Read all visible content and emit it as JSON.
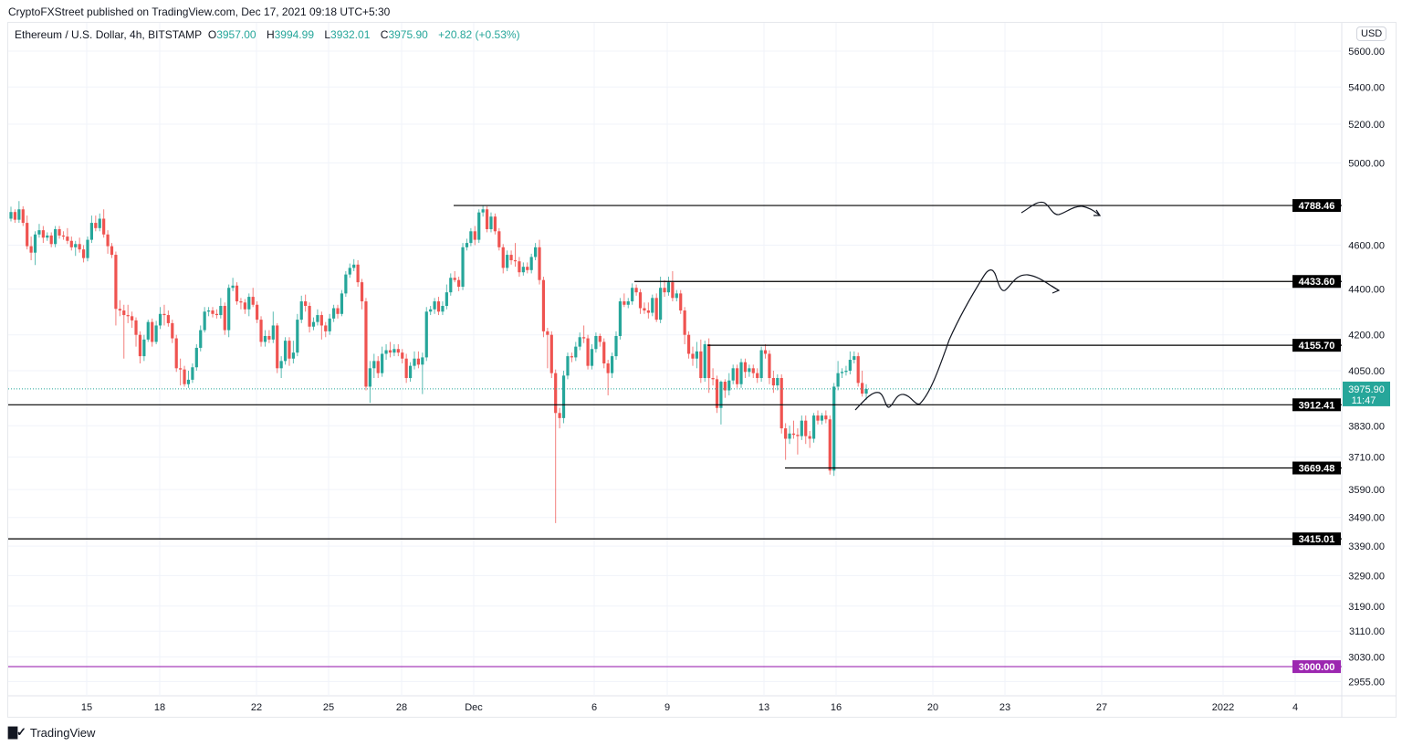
{
  "publisher_line": "CryptoFXStreet published on TradingView.com, Dec 17, 2021 09:18 UTC+5:30",
  "legend": {
    "symbol": "Ethereum / U.S. Dollar, 4h, BITSTAMP",
    "o_label": "O",
    "o": "3957.00",
    "h_label": "H",
    "h": "3994.99",
    "l_label": "L",
    "l": "3932.01",
    "c_label": "C",
    "c": "3975.90",
    "change": "+20.82 (+0.53%)"
  },
  "currency_button": "USD",
  "footer": {
    "logo_text": "TradingView",
    "logo_icon": "tradingview-logo-icon"
  },
  "colors": {
    "up": "#26a69a",
    "down": "#ef5350",
    "level": "#000000",
    "level_3000": "#9c27b0",
    "last_price": "#26a69a"
  },
  "chart_data": {
    "type": "candlestick",
    "timeframe": "4h",
    "y_scale": "log",
    "ylim": [
      2930,
      5700
    ],
    "grid": true,
    "y_ticks": [
      "5600.00",
      "5400.00",
      "5200.00",
      "5000.00",
      "4600.00",
      "4400.00",
      "4200.00",
      "4050.00",
      "3830.00",
      "3710.00",
      "3590.00",
      "3490.00",
      "3390.00",
      "3290.00",
      "3190.00",
      "3110.00",
      "3030.00",
      "2955.00"
    ],
    "x_ticks": [
      "15",
      "18",
      "22",
      "25",
      "28",
      "Dec",
      "6",
      "9",
      "13",
      "16",
      "20",
      "23",
      "27",
      "2022",
      "4"
    ],
    "last_price": {
      "value": "3975.90",
      "countdown": "11:47"
    },
    "levels": [
      {
        "value": "4788.46"
      },
      {
        "value": "4433.60"
      },
      {
        "value": "4155.70"
      },
      {
        "value": "3912.41"
      },
      {
        "value": "3669.48"
      },
      {
        "value": "3415.01"
      },
      {
        "value": "3000.00",
        "color": "#9c27b0"
      }
    ],
    "annotations": [
      "projected-path-up-to-4433",
      "projected-path-at-4788"
    ],
    "candles_ohlc": [
      [
        4725,
        4783,
        4712,
        4757
      ],
      [
        4757,
        4770,
        4705,
        4720
      ],
      [
        4720,
        4810,
        4705,
        4770
      ],
      [
        4770,
        4785,
        4690,
        4705
      ],
      [
        4705,
        4740,
        4580,
        4595
      ],
      [
        4595,
        4640,
        4530,
        4565
      ],
      [
        4565,
        4665,
        4508,
        4650
      ],
      [
        4650,
        4700,
        4635,
        4670
      ],
      [
        4670,
        4690,
        4610,
        4635
      ],
      [
        4635,
        4660,
        4620,
        4645
      ],
      [
        4645,
        4660,
        4590,
        4605
      ],
      [
        4605,
        4690,
        4590,
        4675
      ],
      [
        4675,
        4690,
        4630,
        4645
      ],
      [
        4645,
        4665,
        4625,
        4640
      ],
      [
        4640,
        4680,
        4605,
        4620
      ],
      [
        4620,
        4640,
        4575,
        4590
      ],
      [
        4590,
        4620,
        4550,
        4605
      ],
      [
        4605,
        4635,
        4565,
        4580
      ],
      [
        4580,
        4600,
        4520,
        4540
      ],
      [
        4540,
        4640,
        4525,
        4625
      ],
      [
        4625,
        4740,
        4610,
        4705
      ],
      [
        4705,
        4740,
        4665,
        4680
      ],
      [
        4680,
        4750,
        4665,
        4725
      ],
      [
        4725,
        4770,
        4635,
        4650
      ],
      [
        4650,
        4670,
        4560,
        4595
      ],
      [
        4595,
        4610,
        4540,
        4555
      ],
      [
        4555,
        4570,
        4240,
        4312
      ],
      [
        4312,
        4350,
        4280,
        4305
      ],
      [
        4305,
        4330,
        4100,
        4285
      ],
      [
        4285,
        4330,
        4250,
        4280
      ],
      [
        4280,
        4300,
        4230,
        4262
      ],
      [
        4262,
        4275,
        4150,
        4200
      ],
      [
        4200,
        4215,
        4080,
        4110
      ],
      [
        4110,
        4200,
        4090,
        4180
      ],
      [
        4180,
        4265,
        4170,
        4255
      ],
      [
        4255,
        4270,
        4150,
        4170
      ],
      [
        4170,
        4260,
        4160,
        4240
      ],
      [
        4240,
        4320,
        4225,
        4290
      ],
      [
        4290,
        4330,
        4240,
        4285
      ],
      [
        4285,
        4305,
        4235,
        4250
      ],
      [
        4250,
        4265,
        4165,
        4185
      ],
      [
        4185,
        4200,
        4045,
        4060
      ],
      [
        4060,
        4100,
        3990,
        4055
      ],
      [
        4055,
        4070,
        3985,
        3995
      ],
      [
        3995,
        4050,
        3980,
        4013
      ],
      [
        4013,
        4080,
        4000,
        4064
      ],
      [
        4064,
        4160,
        4050,
        4145
      ],
      [
        4145,
        4240,
        4130,
        4220
      ],
      [
        4220,
        4320,
        4210,
        4300
      ],
      [
        4300,
        4320,
        4280,
        4305
      ],
      [
        4305,
        4320,
        4275,
        4290
      ],
      [
        4290,
        4310,
        4270,
        4285
      ],
      [
        4285,
        4360,
        4270,
        4325
      ],
      [
        4325,
        4340,
        4200,
        4220
      ],
      [
        4220,
        4420,
        4190,
        4405
      ],
      [
        4405,
        4450,
        4390,
        4415
      ],
      [
        4415,
        4430,
        4330,
        4345
      ],
      [
        4345,
        4360,
        4310,
        4340
      ],
      [
        4340,
        4355,
        4290,
        4310
      ],
      [
        4310,
        4380,
        4280,
        4365
      ],
      [
        4365,
        4405,
        4320,
        4330
      ],
      [
        4330,
        4345,
        4250,
        4265
      ],
      [
        4265,
        4280,
        4150,
        4170
      ],
      [
        4170,
        4220,
        4150,
        4195
      ],
      [
        4195,
        4220,
        4165,
        4180
      ],
      [
        4180,
        4300,
        4165,
        4240
      ],
      [
        4240,
        4250,
        4040,
        4060
      ],
      [
        4060,
        4110,
        4020,
        4090
      ],
      [
        4090,
        4190,
        4075,
        4175
      ],
      [
        4175,
        4190,
        4070,
        4100
      ],
      [
        4100,
        4175,
        4080,
        4125
      ],
      [
        4125,
        4290,
        4110,
        4265
      ],
      [
        4265,
        4370,
        4250,
        4345
      ],
      [
        4345,
        4375,
        4300,
        4325
      ],
      [
        4325,
        4340,
        4210,
        4235
      ],
      [
        4235,
        4275,
        4220,
        4255
      ],
      [
        4255,
        4310,
        4240,
        4285
      ],
      [
        4285,
        4300,
        4180,
        4240
      ],
      [
        4240,
        4255,
        4190,
        4215
      ],
      [
        4215,
        4290,
        4200,
        4270
      ],
      [
        4270,
        4330,
        4255,
        4315
      ],
      [
        4315,
        4330,
        4270,
        4290
      ],
      [
        4290,
        4395,
        4280,
        4380
      ],
      [
        4380,
        4480,
        4365,
        4465
      ],
      [
        4465,
        4515,
        4450,
        4495
      ],
      [
        4495,
        4535,
        4480,
        4510
      ],
      [
        4510,
        4530,
        4410,
        4430
      ],
      [
        4430,
        4445,
        4310,
        4345
      ],
      [
        4345,
        4360,
        3970,
        3985
      ],
      [
        3985,
        4090,
        3920,
        4060
      ],
      [
        4060,
        4120,
        4020,
        4090
      ],
      [
        4090,
        4110,
        4020,
        4040
      ],
      [
        4040,
        4150,
        4025,
        4120
      ],
      [
        4120,
        4160,
        4095,
        4135
      ],
      [
        4135,
        4170,
        4105,
        4125
      ],
      [
        4125,
        4160,
        4110,
        4140
      ],
      [
        4140,
        4160,
        4110,
        4125
      ],
      [
        4125,
        4140,
        4080,
        4100
      ],
      [
        4100,
        4120,
        4000,
        4020
      ],
      [
        4020,
        4085,
        4005,
        4070
      ],
      [
        4070,
        4130,
        4055,
        4100
      ],
      [
        4100,
        4130,
        4060,
        4075
      ],
      [
        4075,
        4125,
        3955,
        4105
      ],
      [
        4105,
        4320,
        4090,
        4300
      ],
      [
        4300,
        4325,
        4285,
        4310
      ],
      [
        4310,
        4360,
        4290,
        4345
      ],
      [
        4345,
        4365,
        4285,
        4300
      ],
      [
        4300,
        4345,
        4285,
        4325
      ],
      [
        4325,
        4420,
        4310,
        4385
      ],
      [
        4385,
        4470,
        4370,
        4450
      ],
      [
        4450,
        4480,
        4430,
        4440
      ],
      [
        4440,
        4455,
        4390,
        4410
      ],
      [
        4410,
        4610,
        4395,
        4590
      ],
      [
        4590,
        4630,
        4575,
        4610
      ],
      [
        4610,
        4680,
        4595,
        4665
      ],
      [
        4665,
        4690,
        4600,
        4625
      ],
      [
        4625,
        4770,
        4610,
        4755
      ],
      [
        4755,
        4790,
        4735,
        4770
      ],
      [
        4770,
        4785,
        4660,
        4675
      ],
      [
        4675,
        4755,
        4660,
        4735
      ],
      [
        4735,
        4750,
        4650,
        4665
      ],
      [
        4665,
        4680,
        4575,
        4590
      ],
      [
        4590,
        4605,
        4470,
        4495
      ],
      [
        4495,
        4575,
        4480,
        4555
      ],
      [
        4555,
        4575,
        4510,
        4530
      ],
      [
        4530,
        4610,
        4500,
        4525
      ],
      [
        4525,
        4545,
        4455,
        4475
      ],
      [
        4475,
        4520,
        4460,
        4500
      ],
      [
        4500,
        4520,
        4470,
        4485
      ],
      [
        4485,
        4560,
        4470,
        4545
      ],
      [
        4545,
        4610,
        4530,
        4590
      ],
      [
        4590,
        4625,
        4420,
        4440
      ],
      [
        4440,
        4455,
        4190,
        4215
      ],
      [
        4215,
        4230,
        4060,
        4200
      ],
      [
        4200,
        4215,
        4020,
        4040
      ],
      [
        4040,
        4055,
        3470,
        3880
      ],
      [
        3880,
        3900,
        3820,
        3860
      ],
      [
        3860,
        4050,
        3840,
        4030
      ],
      [
        4030,
        4125,
        4015,
        4110
      ],
      [
        4110,
        4125,
        4085,
        4105
      ],
      [
        4105,
        4170,
        4090,
        4150
      ],
      [
        4150,
        4210,
        4135,
        4190
      ],
      [
        4190,
        4240,
        4165,
        4185
      ],
      [
        4185,
        4200,
        4055,
        4070
      ],
      [
        4070,
        4160,
        4055,
        4140
      ],
      [
        4140,
        4210,
        4125,
        4195
      ],
      [
        4195,
        4205,
        4150,
        4170
      ],
      [
        4170,
        4185,
        4060,
        4080
      ],
      [
        4080,
        4095,
        3950,
        4040
      ],
      [
        4040,
        4125,
        4020,
        4110
      ],
      [
        4110,
        4215,
        4095,
        4195
      ],
      [
        4195,
        4360,
        4180,
        4345
      ],
      [
        4345,
        4380,
        4320,
        4330
      ],
      [
        4330,
        4360,
        4315,
        4345
      ],
      [
        4345,
        4425,
        4330,
        4405
      ],
      [
        4405,
        4420,
        4370,
        4385
      ],
      [
        4385,
        4400,
        4290,
        4315
      ],
      [
        4315,
        4340,
        4290,
        4305
      ],
      [
        4305,
        4340,
        4270,
        4295
      ],
      [
        4295,
        4375,
        4280,
        4360
      ],
      [
        4360,
        4380,
        4255,
        4265
      ],
      [
        4265,
        4455,
        4250,
        4405
      ],
      [
        4405,
        4440,
        4365,
        4385
      ],
      [
        4385,
        4455,
        4370,
        4430
      ],
      [
        4430,
        4480,
        4345,
        4360
      ],
      [
        4360,
        4395,
        4345,
        4380
      ],
      [
        4380,
        4395,
        4290,
        4305
      ],
      [
        4305,
        4320,
        4160,
        4200
      ],
      [
        4200,
        4215,
        4100,
        4120
      ],
      [
        4120,
        4150,
        4070,
        4100
      ],
      [
        4100,
        4170,
        4060,
        4130
      ],
      [
        4130,
        4180,
        4000,
        4020
      ],
      [
        4020,
        4175,
        4005,
        4160
      ],
      [
        4160,
        4185,
        3960,
        4020
      ],
      [
        4020,
        4060,
        3990,
        4015
      ],
      [
        4015,
        4030,
        3880,
        3900
      ],
      [
        3900,
        4010,
        3835,
        4005
      ],
      [
        4005,
        4015,
        3940,
        3970
      ],
      [
        3970,
        4040,
        3950,
        4010
      ],
      [
        4010,
        4075,
        3995,
        4060
      ],
      [
        4060,
        4075,
        3980,
        3995
      ],
      [
        3995,
        4100,
        3980,
        4085
      ],
      [
        4085,
        4100,
        4020,
        4045
      ],
      [
        4045,
        4075,
        4025,
        4060
      ],
      [
        4060,
        4075,
        4020,
        4040
      ],
      [
        4040,
        4060,
        4000,
        4020
      ],
      [
        4020,
        4150,
        4005,
        4135
      ],
      [
        4135,
        4160,
        4100,
        4120
      ],
      [
        4120,
        4135,
        3995,
        4020
      ],
      [
        4020,
        4050,
        3960,
        3990
      ],
      [
        3990,
        4035,
        3970,
        4020
      ],
      [
        4020,
        4035,
        3800,
        3820
      ],
      [
        3820,
        3840,
        3700,
        3780
      ],
      [
        3780,
        3830,
        3760,
        3800
      ],
      [
        3800,
        3850,
        3780,
        3795
      ],
      [
        3795,
        3820,
        3720,
        3790
      ],
      [
        3790,
        3870,
        3775,
        3850
      ],
      [
        3850,
        3870,
        3760,
        3790
      ],
      [
        3790,
        3810,
        3745,
        3780
      ],
      [
        3780,
        3880,
        3765,
        3870
      ],
      [
        3870,
        3890,
        3835,
        3850
      ],
      [
        3850,
        3880,
        3835,
        3870
      ],
      [
        3870,
        3890,
        3840,
        3855
      ],
      [
        3855,
        3870,
        3645,
        3660
      ],
      [
        3660,
        4000,
        3640,
        3985
      ],
      [
        3985,
        4090,
        3970,
        4040
      ],
      [
        4040,
        4060,
        4020,
        4045
      ],
      [
        4045,
        4070,
        4030,
        4050
      ],
      [
        4050,
        4130,
        4035,
        4095
      ],
      [
        4095,
        4130,
        4080,
        4110
      ],
      [
        4110,
        4125,
        3985,
        4000
      ],
      [
        4000,
        4050,
        3945,
        3957
      ],
      [
        3957,
        3994.99,
        3932.01,
        3975.9
      ]
    ]
  }
}
